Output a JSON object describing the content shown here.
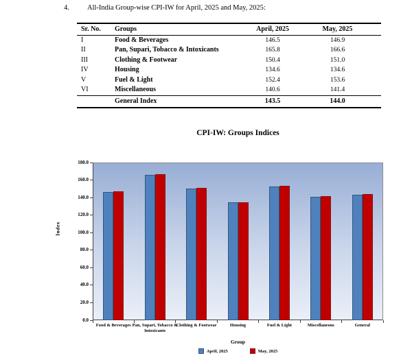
{
  "page": {
    "section_number": "4.",
    "heading": "All-India Group-wise CPI-IW for April, 2025 and May, 2025:"
  },
  "table": {
    "columns": [
      "Sr. No.",
      "Groups",
      "April, 2025",
      "May, 2025"
    ],
    "rows": [
      {
        "sr": "I",
        "group": "Food & Beverages",
        "april": "146.5",
        "may": "146.9"
      },
      {
        "sr": "II",
        "group": "Pan, Supari, Tobacco & Intoxicants",
        "april": "165.8",
        "may": "166.6"
      },
      {
        "sr": "III",
        "group": "Clothing & Footwear",
        "april": "150.4",
        "may": "151.0"
      },
      {
        "sr": "IV",
        "group": "Housing",
        "april": "134.6",
        "may": "134.6"
      },
      {
        "sr": "V",
        "group": "Fuel & Light",
        "april": "152.4",
        "may": "153.6"
      },
      {
        "sr": "VI",
        "group": "Miscellaneous",
        "april": "140.6",
        "may": "141.4"
      }
    ],
    "footer": {
      "sr": "",
      "group": "General Index",
      "april": "143.5",
      "may": "144.0"
    }
  },
  "chart_data": {
    "type": "bar",
    "title": "CPI-IW: Groups Indices",
    "categories": [
      "Food & Beverages",
      "Pan, Supari, Tobacco & Intoxicants",
      "Clothing & Footwear",
      "Housing",
      "Fuel & Light",
      "Miscellaneous",
      "General"
    ],
    "series": [
      {
        "name": "April, 2025",
        "color": "#4F81BD",
        "border": "#31567F",
        "values": [
          146.5,
          165.8,
          150.4,
          134.6,
          152.4,
          140.6,
          143.5
        ]
      },
      {
        "name": "May, 2025",
        "color": "#C00000",
        "border": "#8B1212",
        "values": [
          146.9,
          166.6,
          151.0,
          134.6,
          153.6,
          141.4,
          144.0
        ]
      }
    ],
    "xlabel": "Group",
    "ylabel": "Index",
    "ylim": [
      0,
      180
    ],
    "ytick_step": 20,
    "grid": false,
    "legend_position": "bottom",
    "plot_bg_gradient": [
      "#98AED5",
      "#CBD6EB",
      "#EAEFF8"
    ]
  }
}
